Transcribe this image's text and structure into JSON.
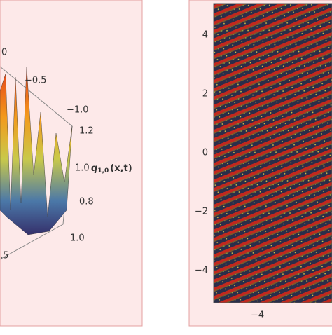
{
  "chart_data": [
    {
      "type": "surface3d",
      "tick_labels": [
        "0",
        "−0.5",
        "−1.0",
        "1.2",
        "1.0",
        "0.8",
        "1.0",
        ".5"
      ],
      "zlabel": {
        "symbol": "q",
        "subscript": "1,0",
        "args": "(x,t)"
      }
    },
    {
      "type": "density",
      "xlim": [
        -5.5,
        -1.45
      ],
      "ylim": [
        -5.1,
        5.07
      ],
      "xticks": [
        {
          "value": -4,
          "label": "−4"
        }
      ],
      "yticks": [
        4,
        2,
        0,
        {
          "value": -2,
          "label": "−2"
        },
        {
          "value": -4,
          "label": "−4"
        }
      ]
    }
  ]
}
